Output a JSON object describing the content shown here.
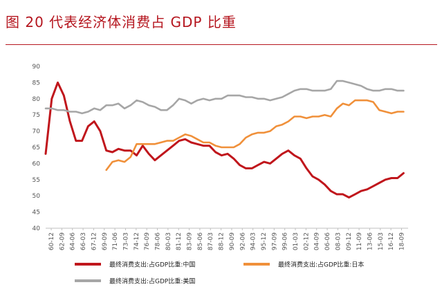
{
  "title": "图 20  代表经济体消费占 GDP 比重",
  "colors": {
    "title": "#b5161f",
    "china": "#c0161c",
    "japan": "#f0903a",
    "usa": "#a6a6a6"
  },
  "chart_data": {
    "type": "line",
    "title": "图 20  代表经济体消费占 GDP 比重",
    "xlabel": "",
    "ylabel": "",
    "ylim": [
      40,
      90
    ],
    "yticks": [
      40,
      45,
      50,
      55,
      60,
      65,
      70,
      75,
      80,
      85,
      90
    ],
    "grid": false,
    "legend_position": "bottom",
    "x_tick_labels": [
      "60-12",
      "62-09",
      "64-06",
      "66-03",
      "67-12",
      "69-09",
      "71-06",
      "73-03",
      "74-12",
      "76-09",
      "78-06",
      "80-03",
      "81-12",
      "83-09",
      "85-06",
      "87-03",
      "88-12",
      "90-09",
      "92-06",
      "94-03",
      "95-12",
      "97-09",
      "99-06",
      "01-03",
      "02-12",
      "04-09",
      "06-06",
      "08-03",
      "09-12",
      "11-09",
      "13-06",
      "15-03",
      "16-12",
      "18-09"
    ],
    "series": [
      {
        "name": "最终消费支出:占GDP比重:中国",
        "color": "#c0161c",
        "x": [
          1960,
          1961,
          1962,
          1963,
          1964,
          1965,
          1966,
          1967,
          1968,
          1969,
          1970,
          1971,
          1972,
          1973,
          1974,
          1975,
          1976,
          1977,
          1978,
          1979,
          1980,
          1981,
          1982,
          1983,
          1984,
          1985,
          1986,
          1987,
          1988,
          1989,
          1990,
          1991,
          1992,
          1993,
          1994,
          1995,
          1996,
          1997,
          1998,
          1999,
          2000,
          2001,
          2002,
          2003,
          2004,
          2005,
          2006,
          2007,
          2008,
          2009,
          2010,
          2011,
          2012,
          2013,
          2014,
          2015,
          2016,
          2017,
          2018,
          2019
        ],
        "values": [
          63,
          80,
          85,
          81,
          73,
          67,
          67,
          71.5,
          73,
          70,
          64,
          63.5,
          64.5,
          64,
          64,
          62.5,
          65.5,
          63,
          61,
          62.5,
          64,
          65.5,
          67,
          67.5,
          66.5,
          66,
          65.5,
          65.5,
          63.5,
          62.5,
          63,
          61.5,
          59.5,
          58.5,
          58.5,
          59.5,
          60.5,
          60,
          61.5,
          63,
          64,
          62.5,
          61.5,
          58.5,
          56,
          55,
          53.5,
          51.5,
          50.5,
          50.5,
          49.5,
          50.5,
          51.5,
          52,
          53,
          54,
          55,
          55.5,
          55.5,
          57
        ]
      },
      {
        "name": "最终消费支出:占GDP比重:日本",
        "color": "#f0903a",
        "x": [
          1970,
          1971,
          1972,
          1973,
          1974,
          1975,
          1976,
          1977,
          1978,
          1979,
          1980,
          1981,
          1982,
          1983,
          1984,
          1985,
          1986,
          1987,
          1988,
          1989,
          1990,
          1991,
          1992,
          1993,
          1994,
          1995,
          1996,
          1997,
          1998,
          1999,
          2000,
          2001,
          2002,
          2003,
          2004,
          2005,
          2006,
          2007,
          2008,
          2009,
          2010,
          2011,
          2012,
          2013,
          2014,
          2015,
          2016,
          2017,
          2018,
          2019
        ],
        "values": [
          58,
          60.5,
          61,
          60.5,
          62,
          66,
          66,
          66,
          66,
          66.5,
          67,
          67,
          68,
          69,
          68.5,
          67.5,
          66.5,
          66.5,
          65.5,
          65,
          65,
          65,
          66,
          68,
          69,
          69.5,
          69.5,
          70,
          71.5,
          72,
          73,
          74.5,
          74.5,
          74,
          74.5,
          74.5,
          75,
          74.5,
          77,
          78.5,
          78,
          79.5,
          79.5,
          79.5,
          79,
          76.5,
          76,
          75.5,
          76,
          76
        ]
      },
      {
        "name": "最终消费支出:占GDP比重:美国",
        "color": "#a6a6a6",
        "x": [
          1960,
          1961,
          1962,
          1963,
          1964,
          1965,
          1966,
          1967,
          1968,
          1969,
          1970,
          1971,
          1972,
          1973,
          1974,
          1975,
          1976,
          1977,
          1978,
          1979,
          1980,
          1981,
          1982,
          1983,
          1984,
          1985,
          1986,
          1987,
          1988,
          1989,
          1990,
          1991,
          1992,
          1993,
          1994,
          1995,
          1996,
          1997,
          1998,
          1999,
          2000,
          2001,
          2002,
          2003,
          2004,
          2005,
          2006,
          2007,
          2008,
          2009,
          2010,
          2011,
          2012,
          2013,
          2014,
          2015,
          2016,
          2017,
          2018,
          2019
        ],
        "values": [
          77,
          77,
          76.5,
          76.5,
          76,
          76,
          75.5,
          76,
          77,
          76.5,
          78,
          78,
          78.5,
          77,
          78,
          79.5,
          79,
          78,
          77.5,
          76.5,
          76.5,
          78,
          80,
          79.5,
          78.5,
          79.5,
          80,
          79.5,
          80,
          80,
          81,
          81,
          81,
          80.5,
          80.5,
          80,
          80,
          79.5,
          80,
          80.5,
          81.5,
          82.5,
          83,
          83,
          82.5,
          82.5,
          82.5,
          83,
          85.5,
          85.5,
          85,
          84.5,
          84,
          83,
          82.5,
          82.5,
          83,
          83,
          82.5,
          82.5
        ]
      }
    ]
  }
}
